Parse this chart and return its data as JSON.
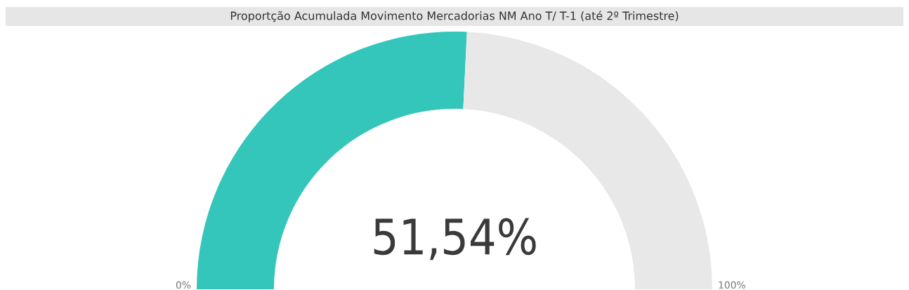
{
  "chart_data": {
    "type": "donut",
    "title": "Proportção Acumulada Movimento Mercadorias NM Ano T/ T-1 (até 2º Trimestre)",
    "categories": [
      null,
      null
    ],
    "values": [
      51.54,
      48.46
    ],
    "colors": [
      "#35c6bb",
      "#e8e8e8"
    ],
    "value_labels": [
      "51,54%",
      null
    ],
    "annotations": [
      "0%",
      "100%"
    ]
  }
}
